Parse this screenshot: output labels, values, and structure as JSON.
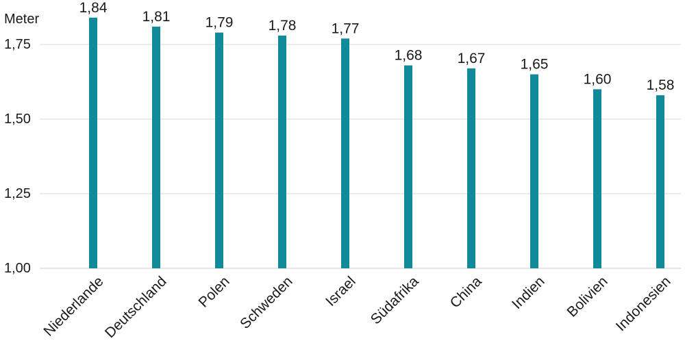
{
  "chart_data": {
    "type": "bar",
    "ylabel": "Meter",
    "ylim": [
      1.0,
      1.9
    ],
    "yticks": [
      "1,00",
      "1,25",
      "1,50",
      "1,75"
    ],
    "ytick_values": [
      1.0,
      1.25,
      1.5,
      1.75
    ],
    "categories": [
      "Niederlande",
      "Deutschland",
      "Polen",
      "Schweden",
      "Israel",
      "Südafrika",
      "China",
      "Indien",
      "Bolivien",
      "Indonesien"
    ],
    "values": [
      1.84,
      1.81,
      1.79,
      1.78,
      1.77,
      1.68,
      1.67,
      1.65,
      1.6,
      1.58
    ],
    "value_labels": [
      "1,84",
      "1,81",
      "1,79",
      "1,78",
      "1,77",
      "1,68",
      "1,67",
      "1,65",
      "1,60",
      "1,58"
    ],
    "highlighted_category": "Deutschland",
    "grid": true,
    "colors": {
      "bar": "#138a99",
      "highlight_label": "#138a99",
      "text": "#1a1a1a",
      "grid": "#d9d9d9"
    }
  }
}
